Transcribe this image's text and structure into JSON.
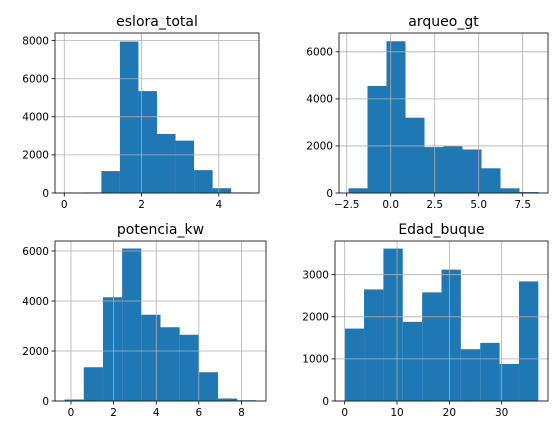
{
  "chart_data": [
    {
      "type": "bar",
      "title": "eslora_total",
      "xlabel": "",
      "ylabel": "",
      "bin_edges": [
        0.0,
        0.48,
        0.96,
        1.44,
        1.92,
        2.4,
        2.88,
        3.36,
        3.84,
        4.32,
        4.8
      ],
      "values": [
        20,
        30,
        1150,
        7950,
        5350,
        3100,
        2750,
        1200,
        250,
        30
      ],
      "xlim": [
        -0.24,
        5.04
      ],
      "ylim": [
        0,
        8400
      ],
      "xticks": [
        0,
        2,
        4
      ],
      "yticks": [
        0,
        2000,
        4000,
        6000,
        8000
      ],
      "grid": true,
      "color": "#1f77b4"
    },
    {
      "type": "bar",
      "title": "arqueo_gt",
      "xlabel": "",
      "ylabel": "",
      "bin_edges": [
        -2.4,
        -1.32,
        -0.24,
        0.84,
        1.92,
        3.0,
        4.08,
        5.16,
        6.24,
        7.32,
        8.4
      ],
      "values": [
        200,
        4550,
        6450,
        3200,
        1950,
        2000,
        1850,
        1050,
        200,
        40
      ],
      "xlim": [
        -2.94,
        8.94
      ],
      "ylim": [
        0,
        6800
      ],
      "xticks": [
        -2.5,
        0.0,
        2.5,
        5.0,
        7.5
      ],
      "yticks": [
        0,
        2000,
        4000,
        6000
      ],
      "grid": true,
      "color": "#1f77b4"
    },
    {
      "type": "bar",
      "title": "potencia_kw",
      "xlabel": "",
      "ylabel": "",
      "bin_edges": [
        -0.3,
        0.6,
        1.5,
        2.4,
        3.3,
        4.2,
        5.1,
        6.0,
        6.9,
        7.8,
        8.7
      ],
      "values": [
        60,
        1350,
        4150,
        6100,
        3450,
        2950,
        2650,
        1150,
        100,
        30
      ],
      "xlim": [
        -0.75,
        9.15
      ],
      "ylim": [
        0,
        6400
      ],
      "xticks": [
        0,
        2,
        4,
        6,
        8
      ],
      "yticks": [
        0,
        2000,
        4000,
        6000
      ],
      "grid": true,
      "color": "#1f77b4"
    },
    {
      "type": "bar",
      "title": "Edad_buque",
      "xlabel": "",
      "ylabel": "",
      "bin_edges": [
        0.0,
        3.7,
        7.4,
        11.1,
        14.8,
        18.5,
        22.2,
        25.9,
        29.6,
        33.3,
        37.0
      ],
      "values": [
        1720,
        2650,
        3620,
        1880,
        2580,
        3120,
        1230,
        1380,
        880,
        2840
      ],
      "xlim": [
        -1.85,
        38.85
      ],
      "ylim": [
        0,
        3800
      ],
      "xticks": [
        0,
        10,
        20,
        30
      ],
      "yticks": [
        0,
        1000,
        2000,
        3000
      ],
      "grid": true,
      "color": "#1f77b4"
    }
  ]
}
